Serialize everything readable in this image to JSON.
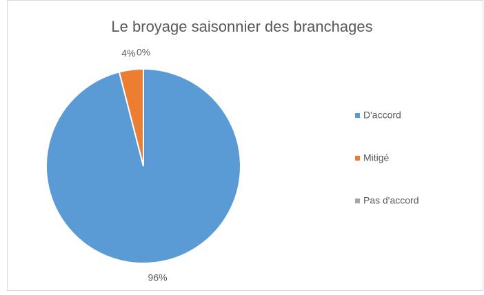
{
  "chart_data": {
    "type": "pie",
    "title": "Le broyage saisonnier des branchages",
    "categories": [
      "D'accord",
      "Mitigé",
      "Pas d'accord"
    ],
    "values": [
      96,
      4,
      0
    ],
    "value_labels": [
      "96%",
      "4%",
      "0%"
    ],
    "colors": [
      "#5b9bd5",
      "#ed7d31",
      "#a5a5a5"
    ],
    "legend": "right"
  }
}
